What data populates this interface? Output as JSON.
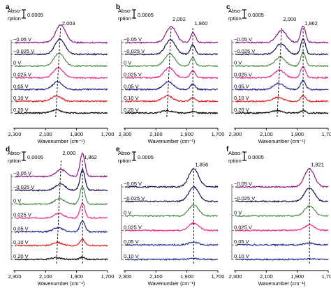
{
  "chart_data": [
    {
      "panel": "a",
      "type": "line",
      "xlabel": "Wavenumber (cm⁻¹)",
      "xlim": [
        2300,
        1700
      ],
      "xticks": [
        2300,
        2100,
        1900,
        1700
      ],
      "xtick_labels": [
        "2,300",
        "2,100",
        "1,900",
        "1,700"
      ],
      "scale_bar": {
        "line1": "Abso-",
        "line2": "rption",
        "value": "0.0005"
      },
      "peak_labels": [
        {
          "text": "2,003",
          "x": 2003
        }
      ],
      "dashed_lines": [
        {
          "from": [
            2035,
            0
          ],
          "to": [
            2003,
            6
          ]
        }
      ],
      "series": [
        {
          "name": "0.20 V",
          "color": "#000000",
          "peak": 2035,
          "amp": 0.2
        },
        {
          "name": "0.10 V",
          "color": "#e41a1c",
          "peak": 2030,
          "amp": 0.35
        },
        {
          "name": "0.05 V",
          "color": "#23238e",
          "peak": 2022,
          "amp": 0.5
        },
        {
          "name": "0.025 V",
          "color": "#e7298a",
          "peak": 2018,
          "amp": 0.65
        },
        {
          "name": "0 V",
          "color": "#4d8a4d",
          "peak": 2013,
          "amp": 0.85
        },
        {
          "name": "−0.025 V",
          "color": "#15154f",
          "peak": 2008,
          "amp": 1.0
        },
        {
          "name": "−0.05 V",
          "color": "#8b1a8b",
          "peak": 2003,
          "amp": 1.15
        }
      ]
    },
    {
      "panel": "b",
      "type": "line",
      "xlabel": "Wavenumber (cm⁻¹)",
      "xlim": [
        2300,
        1700
      ],
      "xticks": [
        2300,
        2100,
        1900,
        1700
      ],
      "xtick_labels": [
        "2,300",
        "2,100",
        "1,900",
        "1,700"
      ],
      "scale_bar": {
        "line1": "Abso-",
        "line2": "rption",
        "value": "0.0005"
      },
      "peak_labels": [
        {
          "text": "2,002",
          "x": 2002
        },
        {
          "text": "1,860",
          "x": 1860
        }
      ],
      "dashed_lines": [
        {
          "from": [
            2030,
            0
          ],
          "to": [
            2002,
            6
          ]
        },
        {
          "from": [
            1862,
            0
          ],
          "to": [
            1862,
            6
          ]
        }
      ],
      "series": [
        {
          "name": "0.20 V",
          "color": "#000000",
          "peak": 2030,
          "amp": 0.15,
          "peak2": 1862,
          "amp2": 0.1
        },
        {
          "name": "0.10 V",
          "color": "#e41a1c",
          "peak": 2025,
          "amp": 0.35,
          "peak2": 1862,
          "amp2": 0.25
        },
        {
          "name": "0.05 V",
          "color": "#23238e",
          "peak": 2020,
          "amp": 0.5,
          "peak2": 1862,
          "amp2": 0.35
        },
        {
          "name": "0.025 V",
          "color": "#e7298a",
          "peak": 2015,
          "amp": 0.65,
          "peak2": 1862,
          "amp2": 0.45
        },
        {
          "name": "0 V",
          "color": "#4d8a4d",
          "peak": 2010,
          "amp": 0.8,
          "peak2": 1862,
          "amp2": 0.55
        },
        {
          "name": "−0.025 V",
          "color": "#15154f",
          "peak": 2006,
          "amp": 0.95,
          "peak2": 1862,
          "amp2": 0.6
        },
        {
          "name": "−0.05 V",
          "color": "#8b1a8b",
          "peak": 2002,
          "amp": 1.05,
          "peak2": 1860,
          "amp2": 0.65
        }
      ]
    },
    {
      "panel": "c",
      "type": "line",
      "xlabel": "Wavenumber (cm⁻¹)",
      "xlim": [
        2300,
        1700
      ],
      "xticks": [
        2300,
        2100,
        1900,
        1700
      ],
      "xtick_labels": [
        "2,300",
        "2,100",
        "1,900",
        "1,700"
      ],
      "scale_bar": {
        "line1": "Abso-",
        "line2": "rption",
        "value": "0.0005"
      },
      "peak_labels": [
        {
          "text": "2,000",
          "x": 2000
        },
        {
          "text": "1,862",
          "x": 1862
        }
      ],
      "dashed_lines": [
        {
          "from": [
            2030,
            0
          ],
          "to": [
            2000,
            6
          ]
        },
        {
          "from": [
            1862,
            0
          ],
          "to": [
            1862,
            6
          ]
        }
      ],
      "series": [
        {
          "name": "0.20 V",
          "color": "#000000",
          "peak": 2030,
          "amp": 0.15,
          "peak2": 1862,
          "amp2": 0.15
        },
        {
          "name": "0.10 V",
          "color": "#e41a1c",
          "peak": 2025,
          "amp": 0.25,
          "peak2": 1862,
          "amp2": 0.35
        },
        {
          "name": "0.05 V",
          "color": "#23238e",
          "peak": 2020,
          "amp": 0.4,
          "peak2": 1862,
          "amp2": 0.6
        },
        {
          "name": "0.025 V",
          "color": "#e7298a",
          "peak": 2015,
          "amp": 0.5,
          "peak2": 1862,
          "amp2": 0.75
        },
        {
          "name": "0 V",
          "color": "#4d8a4d",
          "peak": 2010,
          "amp": 0.6,
          "peak2": 1862,
          "amp2": 0.9
        },
        {
          "name": "−0.025 V",
          "color": "#15154f",
          "peak": 2005,
          "amp": 0.7,
          "peak2": 1862,
          "amp2": 1.0
        },
        {
          "name": "−0.05 V",
          "color": "#8b1a8b",
          "peak": 2000,
          "amp": 0.8,
          "peak2": 1862,
          "amp2": 1.1
        }
      ]
    },
    {
      "panel": "d",
      "type": "line",
      "xlabel": "Wavenumber (cm⁻¹)",
      "xlim": [
        2300,
        1700
      ],
      "xticks": [
        2300,
        2100,
        1900,
        1700
      ],
      "xtick_labels": [
        "2,300",
        "2,100",
        "1,900",
        "1,700"
      ],
      "scale_bar": {
        "line1": "Abso-",
        "line2": "rption",
        "value": "0.0005"
      },
      "peak_labels": [
        {
          "text": "2,000",
          "x": 2000
        },
        {
          "text": "1,862",
          "x": 1862
        }
      ],
      "dashed_lines": [
        {
          "from": [
            2030,
            0
          ],
          "to": [
            2000,
            6
          ]
        },
        {
          "from": [
            1862,
            0
          ],
          "to": [
            1862,
            6
          ]
        }
      ],
      "series": [
        {
          "name": "0.20 V",
          "color": "#000000",
          "peak": 2030,
          "amp": 0.1,
          "peak2": 1862,
          "amp2": 0.15
        },
        {
          "name": "0.10 V",
          "color": "#e41a1c",
          "peak": 2025,
          "amp": 0.2,
          "peak2": 1862,
          "amp2": 0.4
        },
        {
          "name": "0.05 V",
          "color": "#23238e",
          "peak": 2020,
          "amp": 0.25,
          "peak2": 1862,
          "amp2": 0.7
        },
        {
          "name": "0.025 V",
          "color": "#e7298a",
          "peak": 2015,
          "amp": 0.3,
          "peak2": 1862,
          "amp2": 0.95
        },
        {
          "name": "0 V",
          "color": "#4d8a4d",
          "peak": 2010,
          "amp": 0.35,
          "peak2": 1862,
          "amp2": 1.15
        },
        {
          "name": "−0.025 V",
          "color": "#15154f",
          "peak": 2005,
          "amp": 0.4,
          "peak2": 1862,
          "amp2": 1.35
        },
        {
          "name": "−0.05 V",
          "color": "#8b1a8b",
          "peak": 2000,
          "amp": 0.45,
          "peak2": 1862,
          "amp2": 1.5
        }
      ]
    },
    {
      "panel": "e",
      "type": "line",
      "xlabel": "Wavenumber (cm⁻¹)",
      "xlim": [
        2300,
        1700
      ],
      "xticks": [
        2300,
        2100,
        1900,
        1700
      ],
      "xtick_labels": [
        "2,300",
        "2,100",
        "1,900",
        "1,700"
      ],
      "scale_bar": {
        "line1": "Abso-",
        "line2": "rption",
        "value": "0.0005"
      },
      "peak_labels": [
        {
          "text": "1,856",
          "x": 1856
        }
      ],
      "dashed_lines": [
        {
          "from": [
            1856,
            0
          ],
          "to": [
            1856,
            5
          ]
        }
      ],
      "series": [
        {
          "name": "0.10 V",
          "color": "#23238e",
          "peak": 1856,
          "amp": 0.05
        },
        {
          "name": "0.05 V",
          "color": "#23238e",
          "peak": 1856,
          "amp": 0.15
        },
        {
          "name": "0.025 V",
          "color": "#e7298a",
          "peak": 1856,
          "amp": 0.4
        },
        {
          "name": "0 V",
          "color": "#4d8a4d",
          "peak": 1856,
          "amp": 0.6
        },
        {
          "name": "−0.025 V",
          "color": "#15154f",
          "peak": 1856,
          "amp": 0.8
        },
        {
          "name": "−0.05 V",
          "color": "#15154f",
          "peak": 1856,
          "amp": 1.0
        }
      ]
    },
    {
      "panel": "f",
      "type": "line",
      "xlabel": "Wavenumber (cm⁻¹)",
      "xlim": [
        2300,
        1700
      ],
      "xticks": [
        2300,
        2100,
        1900,
        1700
      ],
      "xtick_labels": [
        "2,300",
        "2,100",
        "1,900",
        "1,700"
      ],
      "scale_bar": {
        "line1": "Abso-",
        "line2": "rption",
        "value": "0.0005"
      },
      "peak_labels": [
        {
          "text": "1,821",
          "x": 1821
        }
      ],
      "dashed_lines": [
        {
          "from": [
            1821,
            0
          ],
          "to": [
            1821,
            5
          ]
        }
      ],
      "series": [
        {
          "name": "0.10 V",
          "color": "#23238e",
          "peak": 1821,
          "amp": 0.03
        },
        {
          "name": "0.05 V",
          "color": "#23238e",
          "peak": 1821,
          "amp": 0.1
        },
        {
          "name": "0.025 V",
          "color": "#e7298a",
          "peak": 1821,
          "amp": 0.3
        },
        {
          "name": "0 V",
          "color": "#4d8a4d",
          "peak": 1821,
          "amp": 0.55
        },
        {
          "name": "−0.025 V",
          "color": "#15154f",
          "peak": 1821,
          "amp": 0.75
        },
        {
          "name": "−0.05 V",
          "color": "#8b1a8b",
          "peak": 1821,
          "amp": 1.0
        }
      ]
    }
  ]
}
